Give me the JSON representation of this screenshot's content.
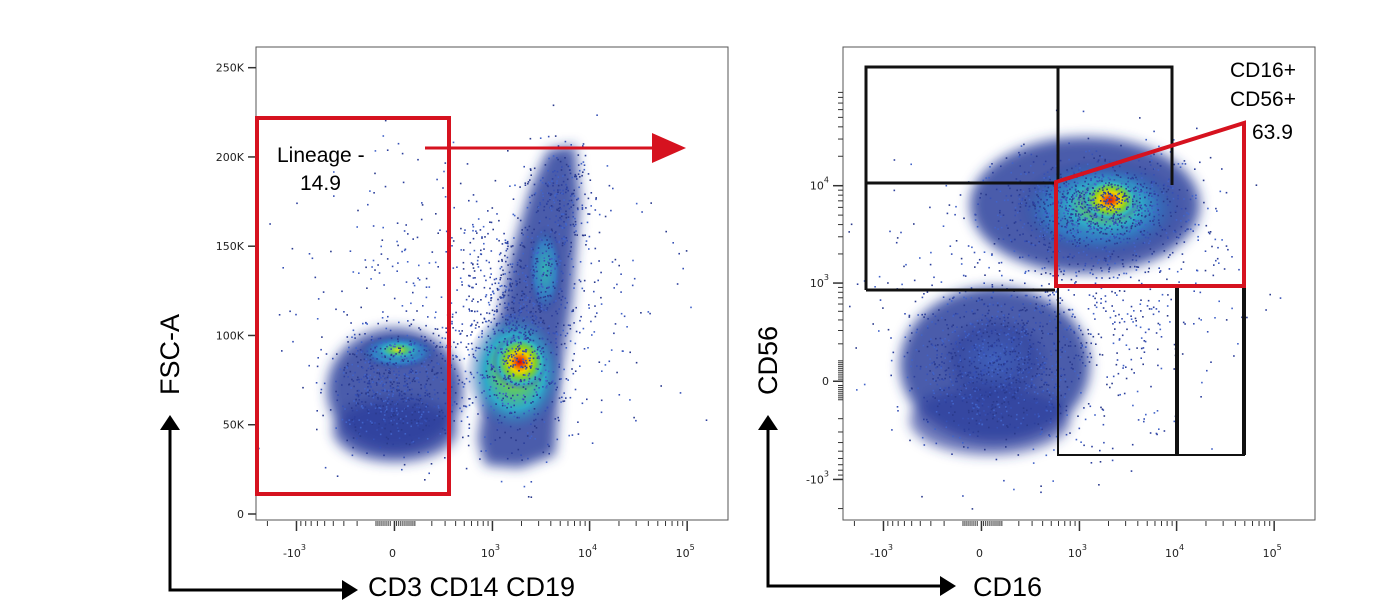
{
  "chart_data": [
    {
      "type": "scatter",
      "subtype": "flow-cytometry-density-plot",
      "xlabel": "CD3 CD14 CD19",
      "ylabel": "FSC-A",
      "x_scale": "biexponential",
      "y_scale": "linear",
      "x_ticks": [
        {
          "base": "-10",
          "exp": "3",
          "value": -1000
        },
        {
          "base": "0",
          "exp": "",
          "value": 0
        },
        {
          "base": "10",
          "exp": "3",
          "value": 1000
        },
        {
          "base": "10",
          "exp": "4",
          "value": 10000
        },
        {
          "base": "10",
          "exp": "5",
          "value": 100000
        }
      ],
      "y_ticks": [
        {
          "label": "0",
          "value": 0
        },
        {
          "label": "50K",
          "value": 50000
        },
        {
          "label": "100K",
          "value": 100000
        },
        {
          "label": "150K",
          "value": 150000
        },
        {
          "label": "200K",
          "value": 200000
        },
        {
          "label": "250K",
          "value": 250000
        }
      ],
      "ylim": [
        0,
        262144
      ],
      "populations": [
        {
          "x": -100,
          "y": 90000,
          "density": "medium"
        },
        {
          "x": 1300,
          "y": 85000,
          "density": "high"
        },
        {
          "x": 3000,
          "y": 130000,
          "density": "low"
        }
      ],
      "gates": [
        {
          "name_line1": "Lineage -",
          "name_line2": "",
          "percent": "14.9",
          "color": "#d6121f"
        }
      ]
    },
    {
      "type": "scatter",
      "subtype": "flow-cytometry-density-plot",
      "xlabel": "CD16",
      "ylabel": "CD56",
      "x_scale": "biexponential",
      "y_scale": "biexponential",
      "x_ticks": [
        {
          "base": "-10",
          "exp": "3",
          "value": -1000
        },
        {
          "base": "0",
          "exp": "",
          "value": 0
        },
        {
          "base": "10",
          "exp": "3",
          "value": 1000
        },
        {
          "base": "10",
          "exp": "4",
          "value": 10000
        },
        {
          "base": "10",
          "exp": "5",
          "value": 100000
        }
      ],
      "y_ticks": [
        {
          "base": "-10",
          "exp": "3",
          "value": -1000
        },
        {
          "base": "0",
          "exp": "",
          "value": 0
        },
        {
          "base": "10",
          "exp": "3",
          "value": 1000
        },
        {
          "base": "10",
          "exp": "4",
          "value": 10000
        }
      ],
      "populations": [
        {
          "x": 2500,
          "y": 2500,
          "density": "high"
        },
        {
          "x": 0,
          "y": 0,
          "density": "medium"
        }
      ],
      "gates": [
        {
          "name_line1": "CD16+",
          "name_line2": "CD56+",
          "percent": "63.9",
          "color": "#d6121f"
        }
      ]
    }
  ],
  "colors": {
    "gate_red": "#d6121f",
    "gate_black": "#111111",
    "density_low": "#2c3f9c",
    "density_high": "#e00000"
  }
}
